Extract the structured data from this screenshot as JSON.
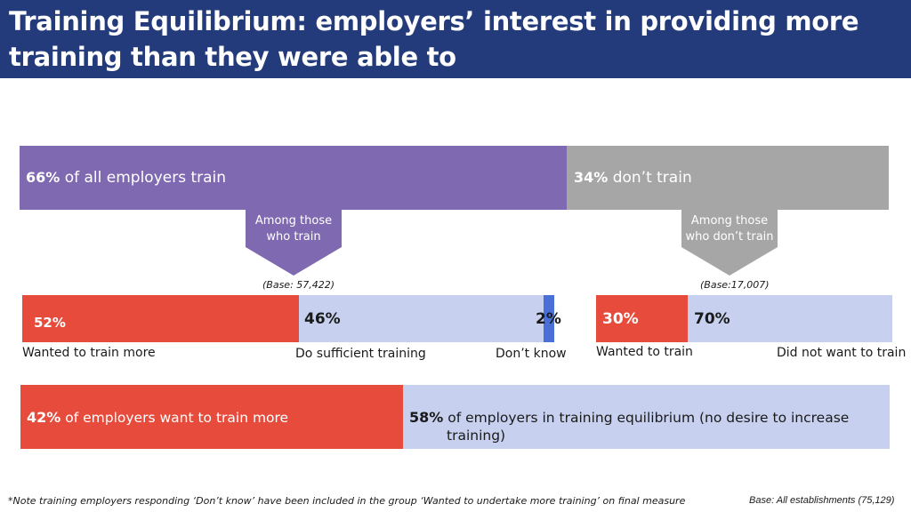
{
  "title": "Training Equilibrium: employers’ interest in providing more training than they were able to",
  "top_bar": {
    "train": {
      "pct": "66%",
      "text": "of all employers train",
      "value": 66
    },
    "dont_train": {
      "pct": "34%",
      "text": "don’t train",
      "value": 34
    }
  },
  "arrows": {
    "left": {
      "line1": "Among those",
      "line2": "who train"
    },
    "right": {
      "line1": "Among those",
      "line2": "who don’t train"
    }
  },
  "train_breakdown": {
    "base": "(Base: 57,422)",
    "segments": [
      {
        "pct": "52%",
        "label": "Wanted to train more",
        "value": 52,
        "color": "#e64b3c"
      },
      {
        "pct": "46%",
        "label": "Do sufficient training",
        "value": 46,
        "color": "#c7d1ef"
      },
      {
        "pct": "2%",
        "label": "Don’t know",
        "value": 2,
        "color": "#4a6fd6"
      }
    ]
  },
  "dont_train_breakdown": {
    "base": "(Base:17,007)",
    "segments": [
      {
        "pct": "30%",
        "label": "Wanted to train",
        "value": 30,
        "color": "#e64b3c"
      },
      {
        "pct": "70%",
        "label": "Did not want to train",
        "value": 70,
        "color": "#c7d1ef"
      }
    ]
  },
  "summary": {
    "want_more": {
      "pct": "42%",
      "text": "of employers want to train more",
      "value": 42
    },
    "equilibrium": {
      "pct": "58%",
      "line1": "of employers in training equilibrium (no desire to increase",
      "line2": "training)",
      "value": 58
    }
  },
  "footnote": "*Note training employers responding ‘Don’t know’ have been included in the group ‘Wanted to undertake more training’ on final measure",
  "base_all": "Base: All establishments (75,129)",
  "chart_data": {
    "type": "bar",
    "title": "Training Equilibrium: employers’ interest in providing more training than they were able to",
    "series": [
      {
        "name": "All employers",
        "categories": [
          "of all employers train",
          "don’t train"
        ],
        "values": [
          66,
          34
        ]
      },
      {
        "name": "Among those who train",
        "categories": [
          "Wanted to train more",
          "Do sufficient training",
          "Don’t know"
        ],
        "values": [
          52,
          46,
          2
        ]
      },
      {
        "name": "Among those who don’t train",
        "categories": [
          "Wanted to train",
          "Did not want to train"
        ],
        "values": [
          30,
          70
        ]
      },
      {
        "name": "Training equilibrium",
        "categories": [
          "of employers want to train more",
          "of employers in training equilibrium (no desire to increase training)"
        ],
        "values": [
          42,
          58
        ]
      }
    ],
    "xlabel": "",
    "ylabel": "",
    "ylim": [
      0,
      100
    ]
  }
}
